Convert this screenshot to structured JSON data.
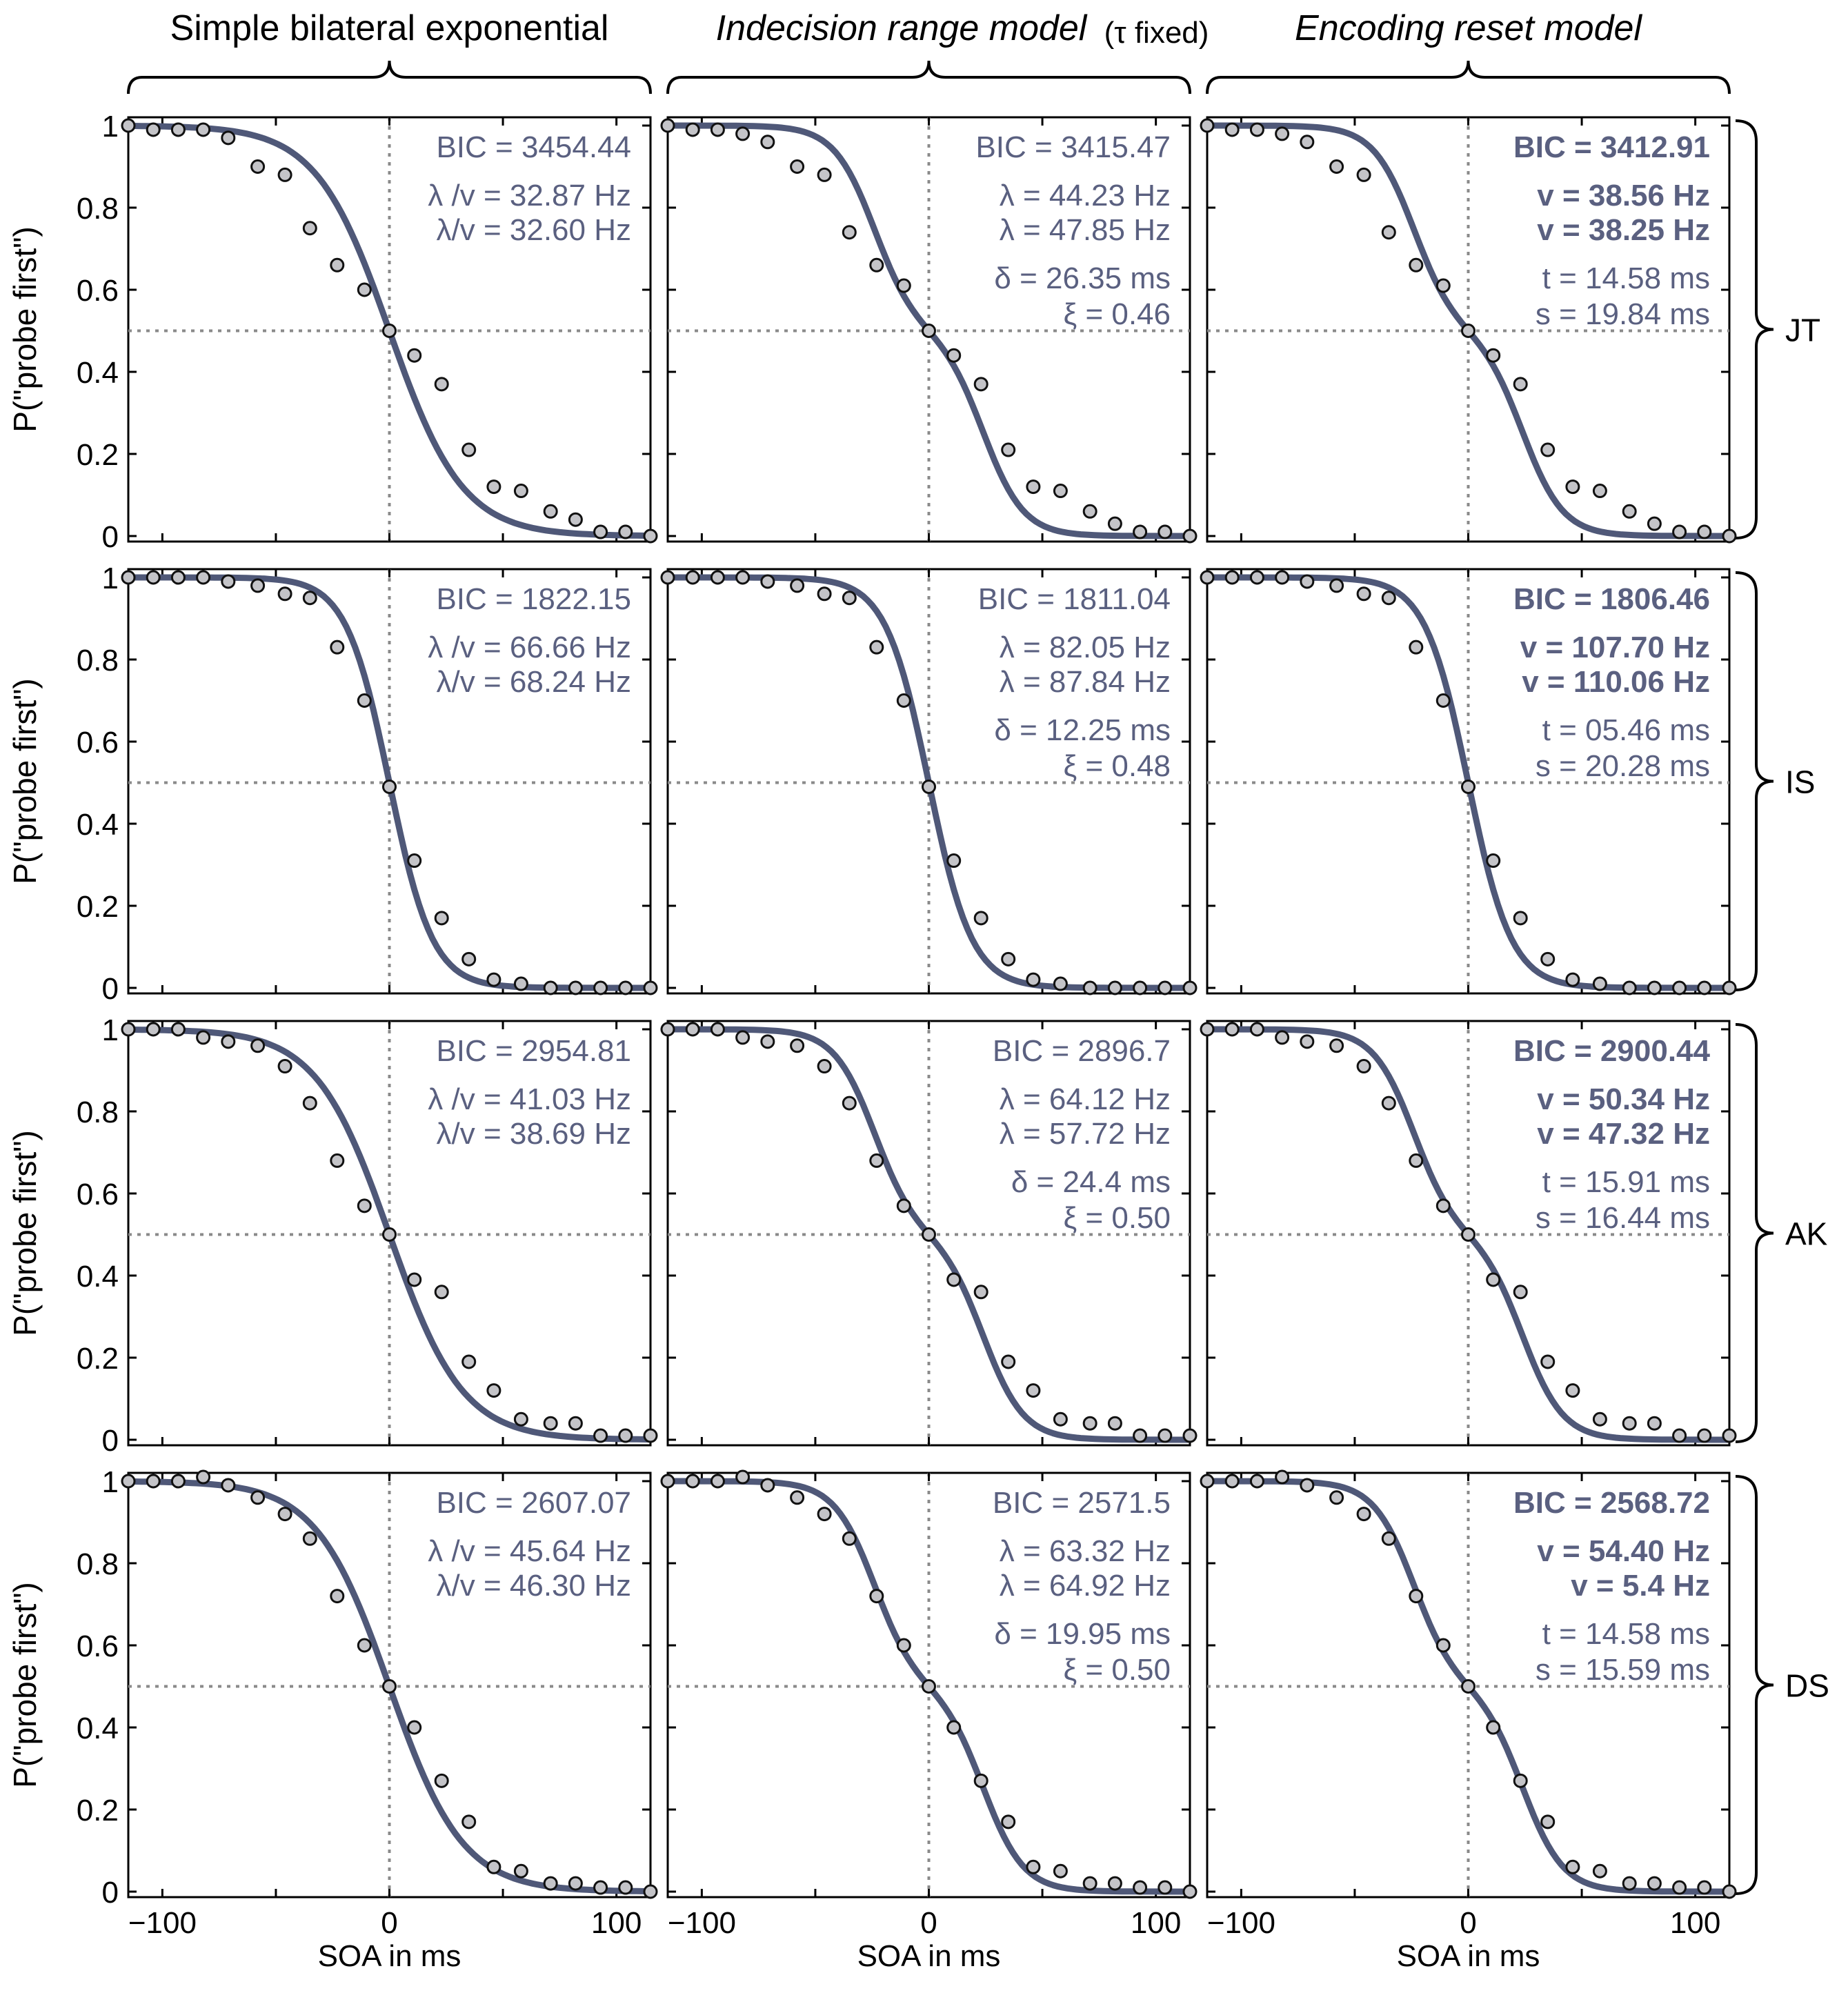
{
  "figure": {
    "column_titles": [
      "Simple bilateral exponential",
      "Indecision range model",
      "Encoding reset model"
    ],
    "column_title_suffix": "(τ fixed)",
    "row_labels": [
      "JT",
      "IS",
      "AK",
      "DS"
    ],
    "ylabel": "P(\"probe first\")",
    "xlabel": "SOA in ms",
    "xticks": [
      "−100",
      "0",
      "100"
    ],
    "yticks": [
      "0",
      "0.2",
      "0.4",
      "0.6",
      "0.8",
      "1"
    ],
    "colors": {
      "curve": "#4f5878",
      "marker_fill": "#c4c4c8",
      "marker_edge": "#111111",
      "guide": "#8a8a8a",
      "param_text": "#5a6080"
    }
  },
  "chart_data": [
    {
      "type": "line",
      "row": "JT",
      "column": "Simple bilateral exponential",
      "xlim": [
        -115,
        115
      ],
      "ylim": [
        0,
        1
      ],
      "params": [
        "BIC = 3454.44",
        "λ /v = 32.87 Hz",
        "λ/v = 32.60 Hz"
      ],
      "x": [
        -115,
        -104,
        -93,
        -82,
        -71,
        -58,
        -46,
        -35,
        -23,
        -11,
        0,
        11,
        23,
        35,
        46,
        58,
        71,
        82,
        93,
        104,
        115
      ],
      "y": [
        1.0,
        0.99,
        0.99,
        0.99,
        0.97,
        0.9,
        0.88,
        0.75,
        0.66,
        0.6,
        0.5,
        0.44,
        0.37,
        0.21,
        0.12,
        0.11,
        0.06,
        0.04,
        0.01,
        0.01,
        0.0
      ]
    },
    {
      "type": "line",
      "row": "JT",
      "column": "Indecision range model",
      "xlim": [
        -115,
        115
      ],
      "ylim": [
        0,
        1
      ],
      "params": [
        "BIC = 3415.47",
        "λ = 44.23 Hz",
        "λ = 47.85 Hz",
        "δ = 26.35 ms",
        "ξ = 0.46"
      ],
      "x": [
        -115,
        -104,
        -93,
        -82,
        -71,
        -58,
        -46,
        -35,
        -23,
        -11,
        0,
        11,
        23,
        35,
        46,
        58,
        71,
        82,
        93,
        104,
        115
      ],
      "y": [
        1.0,
        0.99,
        0.99,
        0.98,
        0.96,
        0.9,
        0.88,
        0.74,
        0.66,
        0.61,
        0.5,
        0.44,
        0.37,
        0.21,
        0.12,
        0.11,
        0.06,
        0.03,
        0.01,
        0.01,
        0.0
      ]
    },
    {
      "type": "line",
      "row": "JT",
      "column": "Encoding reset model",
      "xlim": [
        -115,
        115
      ],
      "ylim": [
        0,
        1
      ],
      "params": [
        "BIC = 3412.91",
        "v = 38.56 Hz",
        "v = 38.25 Hz",
        "t = 14.58 ms",
        "s = 19.84 ms"
      ],
      "x": [
        -115,
        -104,
        -93,
        -82,
        -71,
        -58,
        -46,
        -35,
        -23,
        -11,
        0,
        11,
        23,
        35,
        46,
        58,
        71,
        82,
        93,
        104,
        115
      ],
      "y": [
        1.0,
        0.99,
        0.99,
        0.98,
        0.96,
        0.9,
        0.88,
        0.74,
        0.66,
        0.61,
        0.5,
        0.44,
        0.37,
        0.21,
        0.12,
        0.11,
        0.06,
        0.03,
        0.01,
        0.01,
        0.0
      ]
    },
    {
      "type": "line",
      "row": "IS",
      "column": "Simple bilateral exponential",
      "xlim": [
        -115,
        115
      ],
      "ylim": [
        0,
        1
      ],
      "params": [
        "BIC = 1822.15",
        "λ /v = 66.66 Hz",
        "λ/v = 68.24 Hz"
      ],
      "x": [
        -115,
        -104,
        -93,
        -82,
        -71,
        -58,
        -46,
        -35,
        -23,
        -11,
        0,
        11,
        23,
        35,
        46,
        58,
        71,
        82,
        93,
        104,
        115
      ],
      "y": [
        1.0,
        1.0,
        1.0,
        1.0,
        0.99,
        0.98,
        0.96,
        0.95,
        0.83,
        0.7,
        0.49,
        0.31,
        0.17,
        0.07,
        0.02,
        0.01,
        0.0,
        0.0,
        0.0,
        0.0,
        0.0
      ]
    },
    {
      "type": "line",
      "row": "IS",
      "column": "Indecision range model",
      "xlim": [
        -115,
        115
      ],
      "ylim": [
        0,
        1
      ],
      "params": [
        "BIC = 1811.04",
        "λ = 82.05 Hz",
        "λ = 87.84 Hz",
        "δ = 12.25 ms",
        "ξ = 0.48"
      ],
      "x": [
        -115,
        -104,
        -93,
        -82,
        -71,
        -58,
        -46,
        -35,
        -23,
        -11,
        0,
        11,
        23,
        35,
        46,
        58,
        71,
        82,
        93,
        104,
        115
      ],
      "y": [
        1.0,
        1.0,
        1.0,
        1.0,
        0.99,
        0.98,
        0.96,
        0.95,
        0.83,
        0.7,
        0.49,
        0.31,
        0.17,
        0.07,
        0.02,
        0.01,
        0.0,
        0.0,
        0.0,
        0.0,
        0.0
      ]
    },
    {
      "type": "line",
      "row": "IS",
      "column": "Encoding reset model",
      "xlim": [
        -115,
        115
      ],
      "ylim": [
        0,
        1
      ],
      "params": [
        "BIC = 1806.46",
        "v = 107.70 Hz",
        "v = 110.06 Hz",
        "t = 05.46 ms",
        "s = 20.28 ms"
      ],
      "x": [
        -115,
        -104,
        -93,
        -82,
        -71,
        -58,
        -46,
        -35,
        -23,
        -11,
        0,
        11,
        23,
        35,
        46,
        58,
        71,
        82,
        93,
        104,
        115
      ],
      "y": [
        1.0,
        1.0,
        1.0,
        1.0,
        0.99,
        0.98,
        0.96,
        0.95,
        0.83,
        0.7,
        0.49,
        0.31,
        0.17,
        0.07,
        0.02,
        0.01,
        0.0,
        0.0,
        0.0,
        0.0,
        0.0
      ]
    },
    {
      "type": "line",
      "row": "AK",
      "column": "Simple bilateral exponential",
      "xlim": [
        -115,
        115
      ],
      "ylim": [
        0,
        1
      ],
      "params": [
        "BIC = 2954.81",
        "λ /v = 41.03 Hz",
        "λ/v = 38.69 Hz"
      ],
      "x": [
        -115,
        -104,
        -93,
        -82,
        -71,
        -58,
        -46,
        -35,
        -23,
        -11,
        0,
        11,
        23,
        35,
        46,
        58,
        71,
        82,
        93,
        104,
        115
      ],
      "y": [
        1.0,
        1.0,
        1.0,
        0.98,
        0.97,
        0.96,
        0.91,
        0.82,
        0.68,
        0.57,
        0.5,
        0.39,
        0.36,
        0.19,
        0.12,
        0.05,
        0.04,
        0.04,
        0.01,
        0.01,
        0.01
      ]
    },
    {
      "type": "line",
      "row": "AK",
      "column": "Indecision range model",
      "xlim": [
        -115,
        115
      ],
      "ylim": [
        0,
        1
      ],
      "params": [
        "BIC = 2896.7",
        "λ = 64.12 Hz",
        "λ = 57.72 Hz",
        "δ = 24.4 ms",
        "ξ = 0.50"
      ],
      "x": [
        -115,
        -104,
        -93,
        -82,
        -71,
        -58,
        -46,
        -35,
        -23,
        -11,
        0,
        11,
        23,
        35,
        46,
        58,
        71,
        82,
        93,
        104,
        115
      ],
      "y": [
        1.0,
        1.0,
        1.0,
        0.98,
        0.97,
        0.96,
        0.91,
        0.82,
        0.68,
        0.57,
        0.5,
        0.39,
        0.36,
        0.19,
        0.12,
        0.05,
        0.04,
        0.04,
        0.01,
        0.01,
        0.01
      ]
    },
    {
      "type": "line",
      "row": "AK",
      "column": "Encoding reset model",
      "xlim": [
        -115,
        115
      ],
      "ylim": [
        0,
        1
      ],
      "params": [
        "BIC = 2900.44",
        "v = 50.34 Hz",
        "v = 47.32 Hz",
        "t = 15.91 ms",
        "s = 16.44 ms"
      ],
      "x": [
        -115,
        -104,
        -93,
        -82,
        -71,
        -58,
        -46,
        -35,
        -23,
        -11,
        0,
        11,
        23,
        35,
        46,
        58,
        71,
        82,
        93,
        104,
        115
      ],
      "y": [
        1.0,
        1.0,
        1.0,
        0.98,
        0.97,
        0.96,
        0.91,
        0.82,
        0.68,
        0.57,
        0.5,
        0.39,
        0.36,
        0.19,
        0.12,
        0.05,
        0.04,
        0.04,
        0.01,
        0.01,
        0.01
      ]
    },
    {
      "type": "line",
      "row": "DS",
      "column": "Simple bilateral exponential",
      "xlim": [
        -115,
        115
      ],
      "ylim": [
        0,
        1
      ],
      "params": [
        "BIC = 2607.07",
        "λ /v = 45.64 Hz",
        "λ/v = 46.30 Hz"
      ],
      "x": [
        -115,
        -104,
        -93,
        -82,
        -71,
        -58,
        -46,
        -35,
        -23,
        -11,
        0,
        11,
        23,
        35,
        46,
        58,
        71,
        82,
        93,
        104,
        115
      ],
      "y": [
        1.0,
        1.0,
        1.0,
        1.01,
        0.99,
        0.96,
        0.92,
        0.86,
        0.72,
        0.6,
        0.5,
        0.4,
        0.27,
        0.17,
        0.06,
        0.05,
        0.02,
        0.02,
        0.01,
        0.01,
        0.0
      ]
    },
    {
      "type": "line",
      "row": "DS",
      "column": "Indecision range model",
      "xlim": [
        -115,
        115
      ],
      "ylim": [
        0,
        1
      ],
      "params": [
        "BIC = 2571.5",
        "λ = 63.32 Hz",
        "λ = 64.92 Hz",
        "δ = 19.95 ms",
        "ξ = 0.50"
      ],
      "x": [
        -115,
        -104,
        -93,
        -82,
        -71,
        -58,
        -46,
        -35,
        -23,
        -11,
        0,
        11,
        23,
        35,
        46,
        58,
        71,
        82,
        93,
        104,
        115
      ],
      "y": [
        1.0,
        1.0,
        1.0,
        1.01,
        0.99,
        0.96,
        0.92,
        0.86,
        0.72,
        0.6,
        0.5,
        0.4,
        0.27,
        0.17,
        0.06,
        0.05,
        0.02,
        0.02,
        0.01,
        0.01,
        0.0
      ]
    },
    {
      "type": "line",
      "row": "DS",
      "column": "Encoding reset model",
      "xlim": [
        -115,
        115
      ],
      "ylim": [
        0,
        1
      ],
      "params": [
        "BIC = 2568.72",
        "v = 54.40 Hz",
        "v = 5.4 Hz",
        "t = 14.58 ms",
        "s = 15.59 ms"
      ],
      "x": [
        -115,
        -104,
        -93,
        -82,
        -71,
        -58,
        -46,
        -35,
        -23,
        -11,
        0,
        11,
        23,
        35,
        46,
        58,
        71,
        82,
        93,
        104,
        115
      ],
      "y": [
        1.0,
        1.0,
        1.0,
        1.01,
        0.99,
        0.96,
        0.92,
        0.86,
        0.72,
        0.6,
        0.5,
        0.4,
        0.27,
        0.17,
        0.06,
        0.05,
        0.02,
        0.02,
        0.01,
        0.01,
        0.0
      ]
    }
  ]
}
